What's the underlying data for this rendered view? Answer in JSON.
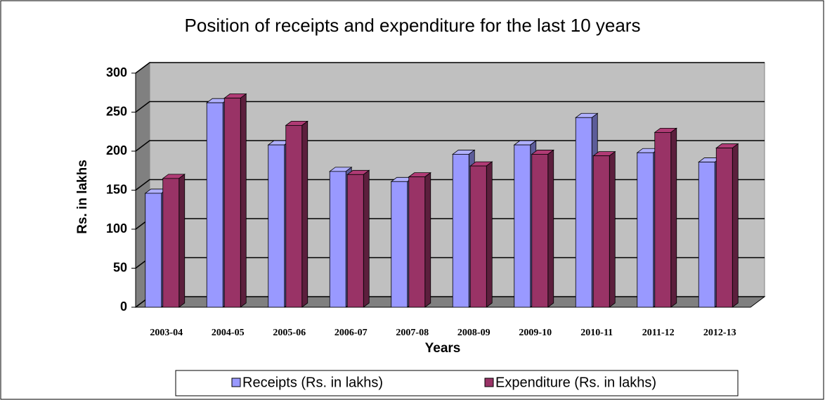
{
  "chart_data": {
    "type": "bar3d",
    "title": "Position of receipts and expenditure for the last 10 years",
    "x_label": "Years",
    "y_label": "Rs. in lakhs",
    "categories": [
      "2003-04",
      "2004-05",
      "2005-06",
      "2006-07",
      "2007-08",
      "2008-09",
      "2009-10",
      "2010-11",
      "2011-12",
      "2012-13"
    ],
    "series": [
      {
        "name": "Receipts (Rs. in lakhs)",
        "color": "#9999ff",
        "values": [
          146,
          262,
          208,
          174,
          161,
          196,
          208,
          243,
          198,
          186
        ]
      },
      {
        "name": "Expenditure (Rs. in lakhs)",
        "color": "#993366",
        "values": [
          165,
          268,
          233,
          170,
          167,
          181,
          196,
          194,
          224,
          204
        ]
      }
    ],
    "ylim": [
      0,
      300
    ],
    "yticks": [
      0,
      50,
      100,
      150,
      200,
      250,
      300
    ],
    "grid": true,
    "legend": "bottom"
  }
}
